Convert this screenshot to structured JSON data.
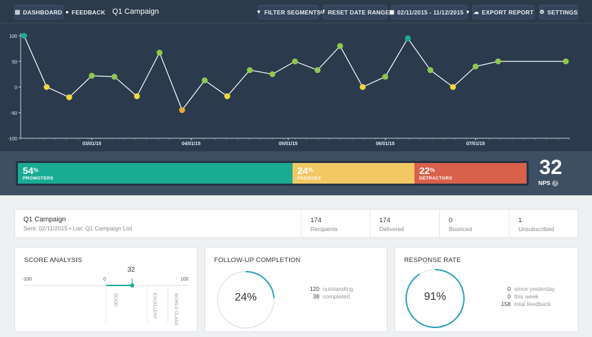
{
  "toolbar": {
    "dashboard": "DASHBOARD",
    "feedback": "FEEDBACK",
    "title": "Q1 Campaign",
    "filter": "FILTER SEGMENTS",
    "reset": "RESET DATE RANGE",
    "daterange": "02/11/2015 - 11/12/2015",
    "export": "EXPORT REPORT",
    "settings": "SETTINGS"
  },
  "chart_data": {
    "type": "line",
    "ylim": [
      -100,
      100
    ],
    "yticks": [
      100,
      50,
      0,
      -50,
      -100
    ],
    "xticks": [
      "03/01/15",
      "04/01/15",
      "05/01/15",
      "06/01/15",
      "07/01/15"
    ],
    "xticks_at": [
      3,
      7.4,
      11.7,
      16,
      20
    ],
    "values": [
      100,
      0,
      -20,
      22,
      20,
      -18,
      67,
      -45,
      13,
      -18,
      33,
      25,
      50,
      33,
      80,
      0,
      20,
      95,
      33,
      0,
      40,
      50,
      50
    ],
    "x": [
      0,
      1,
      2,
      3,
      4,
      5,
      6,
      7,
      8,
      9,
      10,
      11,
      12,
      13,
      14,
      15,
      16,
      17,
      18,
      19,
      20,
      21,
      24
    ],
    "colors": {
      "promoter": "#1aab95",
      "passive": "#e8d93f",
      "detractor": "#e9a83f",
      "neutral_good": "#8fc74c",
      "line": "#ffffff"
    }
  },
  "nps": {
    "promoters_pct": "54",
    "promoters_label": "PROMOTERS",
    "passives_pct": "24",
    "passives_label": "PASSIVES",
    "detractors_pct": "22",
    "detractors_label": "DETRACTORS",
    "percent_sign": "%",
    "score": "32",
    "score_label": "NPS",
    "promoters_share": 0.54,
    "passives_share": 0.24,
    "detractors_share": 0.22
  },
  "campaign": {
    "name": "Q1 Campaign",
    "sent": "Sent: 02/11/2015  •  List: Q1 Campaign List",
    "stats": [
      {
        "value": "174",
        "label": "Recipients"
      },
      {
        "value": "174",
        "label": "Delivered"
      },
      {
        "value": "0",
        "label": "Bounced"
      },
      {
        "value": "1",
        "label": "Unsubscribed"
      }
    ]
  },
  "score_analysis": {
    "title": "SCORE ANALYSIS",
    "min": "-100",
    "zero": "0",
    "max": "100",
    "score": "32",
    "score_value": 32,
    "benchmarks": [
      "GOOD",
      "EXCELLENT",
      "WORLD CLASS"
    ]
  },
  "followup": {
    "title": "FOLLOW-UP COMPLETION",
    "pct_text": "24%",
    "fraction": 0.24,
    "rows": [
      {
        "value": "120",
        "label": "outstanding"
      },
      {
        "value": "38",
        "label": "completed"
      }
    ]
  },
  "response": {
    "title": "RESPONSE RATE",
    "pct_text": "91%",
    "fraction": 0.91,
    "rows": [
      {
        "value": "0",
        "label": "since yesterday"
      },
      {
        "value": "0",
        "label": "this week"
      },
      {
        "value": "158",
        "label": "total feedback"
      }
    ]
  }
}
